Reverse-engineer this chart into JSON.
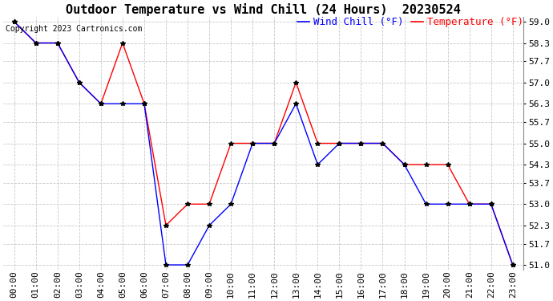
{
  "title": "Outdoor Temperature vs Wind Chill (24 Hours)  20230524",
  "copyright": "Copyright 2023 Cartronics.com",
  "legend_wind_chill": "Wind Chill (°F)",
  "legend_temperature": "Temperature (°F)",
  "x_labels": [
    "00:00",
    "01:00",
    "02:00",
    "03:00",
    "04:00",
    "05:00",
    "06:00",
    "07:00",
    "08:00",
    "09:00",
    "10:00",
    "11:00",
    "12:00",
    "13:00",
    "14:00",
    "15:00",
    "16:00",
    "17:00",
    "18:00",
    "19:00",
    "20:00",
    "21:00",
    "22:00",
    "23:00"
  ],
  "temperature": [
    59.0,
    58.3,
    58.3,
    57.0,
    56.3,
    58.3,
    56.3,
    52.3,
    53.0,
    53.0,
    55.0,
    55.0,
    55.0,
    57.0,
    55.0,
    55.0,
    55.0,
    55.0,
    54.3,
    54.3,
    54.3,
    53.0,
    53.0,
    51.0
  ],
  "wind_chill": [
    59.0,
    58.3,
    58.3,
    57.0,
    56.3,
    56.3,
    56.3,
    51.0,
    51.0,
    52.3,
    53.0,
    55.0,
    55.0,
    56.3,
    54.3,
    55.0,
    55.0,
    55.0,
    54.3,
    53.0,
    53.0,
    53.0,
    53.0,
    51.0
  ],
  "temp_color": "#ff0000",
  "wind_chill_color": "#0000ff",
  "ylim_min": 51.0,
  "ylim_max": 59.0,
  "y_ticks": [
    51.0,
    51.7,
    52.3,
    53.0,
    53.7,
    54.3,
    55.0,
    55.7,
    56.3,
    57.0,
    57.7,
    58.3,
    59.0
  ],
  "background_color": "#ffffff",
  "grid_color": "#c8c8c8",
  "title_fontsize": 11,
  "axis_fontsize": 8,
  "legend_fontsize": 9,
  "marker_color": "#000000",
  "marker_size": 4
}
